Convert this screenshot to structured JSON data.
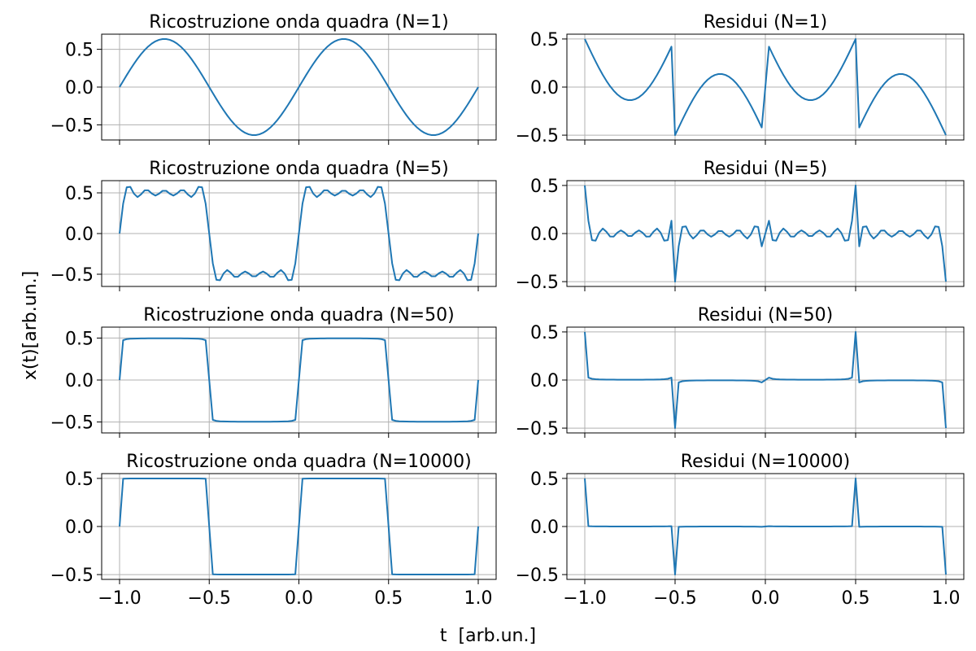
{
  "figure": {
    "xlabel": "t  [arb.un.]",
    "ylabel": "x(t)[arb.un.]"
  },
  "chart_data": [
    {
      "type": "line",
      "title": "Ricostruzione onda quadra (N=1)",
      "signal": "fourier_square",
      "harmonics": 1,
      "xlim": [
        -1.0,
        1.0
      ],
      "ylim": [
        -0.7,
        0.7
      ],
      "yticks": [
        -0.5,
        0.0,
        0.5
      ],
      "xticks": [
        -1.0,
        -0.5,
        0.0,
        0.5,
        1.0
      ],
      "show_xticklabels": false,
      "grid": true,
      "color": "#1f77b4"
    },
    {
      "type": "line",
      "title": "Residui (N=1)",
      "signal": "residual",
      "harmonics": 1,
      "xlim": [
        -1.0,
        1.0
      ],
      "ylim": [
        -0.55,
        0.55
      ],
      "yticks": [
        -0.5,
        0.0,
        0.5
      ],
      "xticks": [
        -1.0,
        -0.5,
        0.0,
        0.5,
        1.0
      ],
      "show_xticklabels": false,
      "grid": true,
      "color": "#1f77b4"
    },
    {
      "type": "line",
      "title": "Ricostruzione onda quadra (N=5)",
      "signal": "fourier_square",
      "harmonics": 5,
      "xlim": [
        -1.0,
        1.0
      ],
      "ylim": [
        -0.65,
        0.65
      ],
      "yticks": [
        -0.5,
        0.0,
        0.5
      ],
      "xticks": [
        -1.0,
        -0.5,
        0.0,
        0.5,
        1.0
      ],
      "show_xticklabels": false,
      "grid": true,
      "color": "#1f77b4"
    },
    {
      "type": "line",
      "title": "Residui (N=5)",
      "signal": "residual",
      "harmonics": 5,
      "xlim": [
        -1.0,
        1.0
      ],
      "ylim": [
        -0.55,
        0.55
      ],
      "yticks": [
        -0.5,
        0.0,
        0.5
      ],
      "xticks": [
        -1.0,
        -0.5,
        0.0,
        0.5,
        1.0
      ],
      "show_xticklabels": false,
      "grid": true,
      "color": "#1f77b4"
    },
    {
      "type": "line",
      "title": "Ricostruzione onda quadra (N=50)",
      "signal": "fourier_square",
      "harmonics": 50,
      "xlim": [
        -1.0,
        1.0
      ],
      "ylim": [
        -0.63,
        0.63
      ],
      "yticks": [
        -0.5,
        0.0,
        0.5
      ],
      "xticks": [
        -1.0,
        -0.5,
        0.0,
        0.5,
        1.0
      ],
      "show_xticklabels": false,
      "grid": true,
      "color": "#1f77b4"
    },
    {
      "type": "line",
      "title": "Residui (N=50)",
      "signal": "residual",
      "harmonics": 50,
      "xlim": [
        -1.0,
        1.0
      ],
      "ylim": [
        -0.55,
        0.55
      ],
      "yticks": [
        -0.5,
        0.0,
        0.5
      ],
      "xticks": [
        -1.0,
        -0.5,
        0.0,
        0.5,
        1.0
      ],
      "show_xticklabels": false,
      "grid": true,
      "color": "#1f77b4"
    },
    {
      "type": "line",
      "title": "Ricostruzione onda quadra (N=10000)",
      "signal": "fourier_square",
      "harmonics": 10000,
      "xlim": [
        -1.0,
        1.0
      ],
      "ylim": [
        -0.55,
        0.55
      ],
      "yticks": [
        -0.5,
        0.0,
        0.5
      ],
      "xticks": [
        -1.0,
        -0.5,
        0.0,
        0.5,
        1.0
      ],
      "show_xticklabels": true,
      "grid": true,
      "color": "#1f77b4"
    },
    {
      "type": "line",
      "title": "Residui (N=10000)",
      "signal": "residual",
      "harmonics": 10000,
      "xlim": [
        -1.0,
        1.0
      ],
      "ylim": [
        -0.55,
        0.55
      ],
      "yticks": [
        -0.5,
        0.0,
        0.5
      ],
      "xticks": [
        -1.0,
        -0.5,
        0.0,
        0.5,
        1.0
      ],
      "show_xticklabels": true,
      "grid": true,
      "color": "#1f77b4"
    }
  ]
}
